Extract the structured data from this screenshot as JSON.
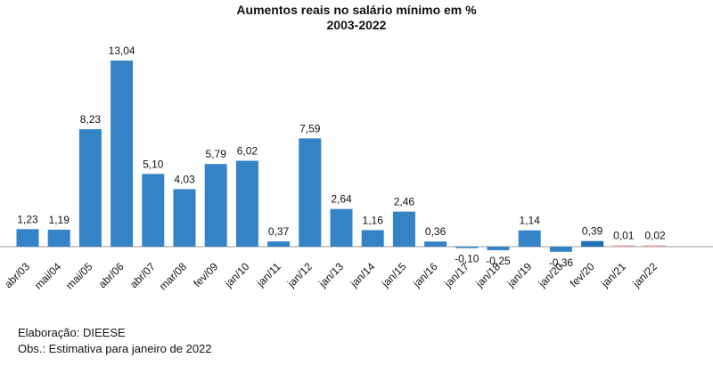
{
  "chart_data": {
    "type": "bar",
    "title": "Aumentos reais no salário mínimo em %",
    "subtitle": "2003-2022",
    "xlabel": "",
    "ylabel": "",
    "categories": [
      "abr/03",
      "mai/04",
      "mai/05",
      "abr/06",
      "abr/07",
      "mar/08",
      "fev/09",
      "jan/10",
      "jan/11",
      "jan/12",
      "jan/13",
      "jan/14",
      "jan/15",
      "jan/16",
      "jan/17",
      "jan/18",
      "jan/19",
      "jan/20",
      "fev/20",
      "jan/21",
      "jan/22"
    ],
    "values": [
      1.23,
      1.19,
      8.23,
      13.04,
      5.1,
      4.03,
      5.79,
      6.02,
      0.37,
      7.59,
      2.64,
      1.16,
      2.46,
      0.36,
      -0.1,
      -0.25,
      1.14,
      -0.36,
      0.39,
      0.01,
      0.02
    ],
    "value_labels": [
      "1,23",
      "1,19",
      "8,23",
      "13,04",
      "5,10",
      "4,03",
      "5,79",
      "6,02",
      "0,37",
      "7,59",
      "2,64",
      "1,16",
      "2,46",
      "0,36",
      "-0,10",
      "-0,25",
      "1,14",
      "-0,36",
      "0,39",
      "0,01",
      "0,02"
    ],
    "colors": {
      "bar": "#3483c6",
      "bar_highlight": "#1f6fb2",
      "bar_small": "#e8a0a0",
      "axis": "#999999"
    },
    "grid": false,
    "legend": "none"
  },
  "notes": {
    "source": "Elaboração: DIEESE",
    "obs": "Obs.: Estimativa para janeiro de 2022"
  }
}
